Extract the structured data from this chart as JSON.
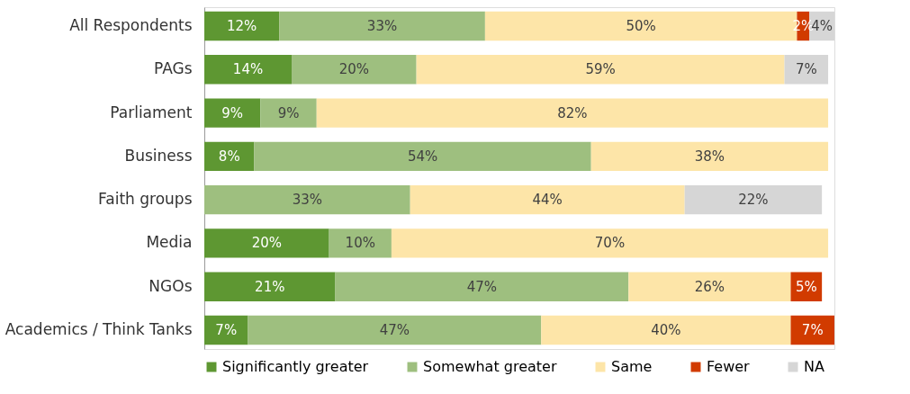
{
  "chart_data": {
    "type": "bar",
    "orientation": "horizontal",
    "stacked": true,
    "categories": [
      "All Respondents",
      "PAGs",
      "Parliament",
      "Business",
      "Faith groups",
      "Media",
      "NGOs",
      "Academics / Think Tanks"
    ],
    "xlim": [
      0,
      101
    ],
    "series": [
      {
        "name": "Significantly greater",
        "color": "#5e9732",
        "values": [
          12,
          14,
          9,
          8,
          null,
          20,
          21,
          7
        ],
        "value_labels": [
          "12%",
          "14%",
          "9%",
          "8%",
          null,
          "20%",
          "21%",
          "7%"
        ]
      },
      {
        "name": "Somewhat greater",
        "color": "#9ebf7f",
        "values": [
          33,
          20,
          9,
          54,
          33,
          10,
          47,
          47
        ],
        "value_labels": [
          "33%",
          "20%",
          "9%",
          "54%",
          "33%",
          "10%",
          "47%",
          "47%"
        ]
      },
      {
        "name": "Same",
        "color": "#fde5a8",
        "values": [
          50,
          59,
          82,
          38,
          44,
          70,
          26,
          40
        ],
        "value_labels": [
          "50%",
          "59%",
          "82%",
          "38%",
          "44%",
          "70%",
          "26%",
          "40%"
        ]
      },
      {
        "name": "Fewer",
        "color": "#d13b00",
        "values": [
          2,
          null,
          null,
          null,
          null,
          null,
          5,
          7
        ],
        "value_labels": [
          "2%",
          null,
          null,
          null,
          null,
          null,
          "5%",
          "7%"
        ]
      },
      {
        "name": "NA",
        "color": "#d6d6d6",
        "values": [
          4,
          7,
          null,
          null,
          22,
          null,
          null,
          null
        ],
        "value_labels": [
          "4%",
          "7%",
          null,
          null,
          "22%",
          null,
          null,
          null
        ]
      }
    ],
    "legend": "bottom",
    "grid": false
  }
}
